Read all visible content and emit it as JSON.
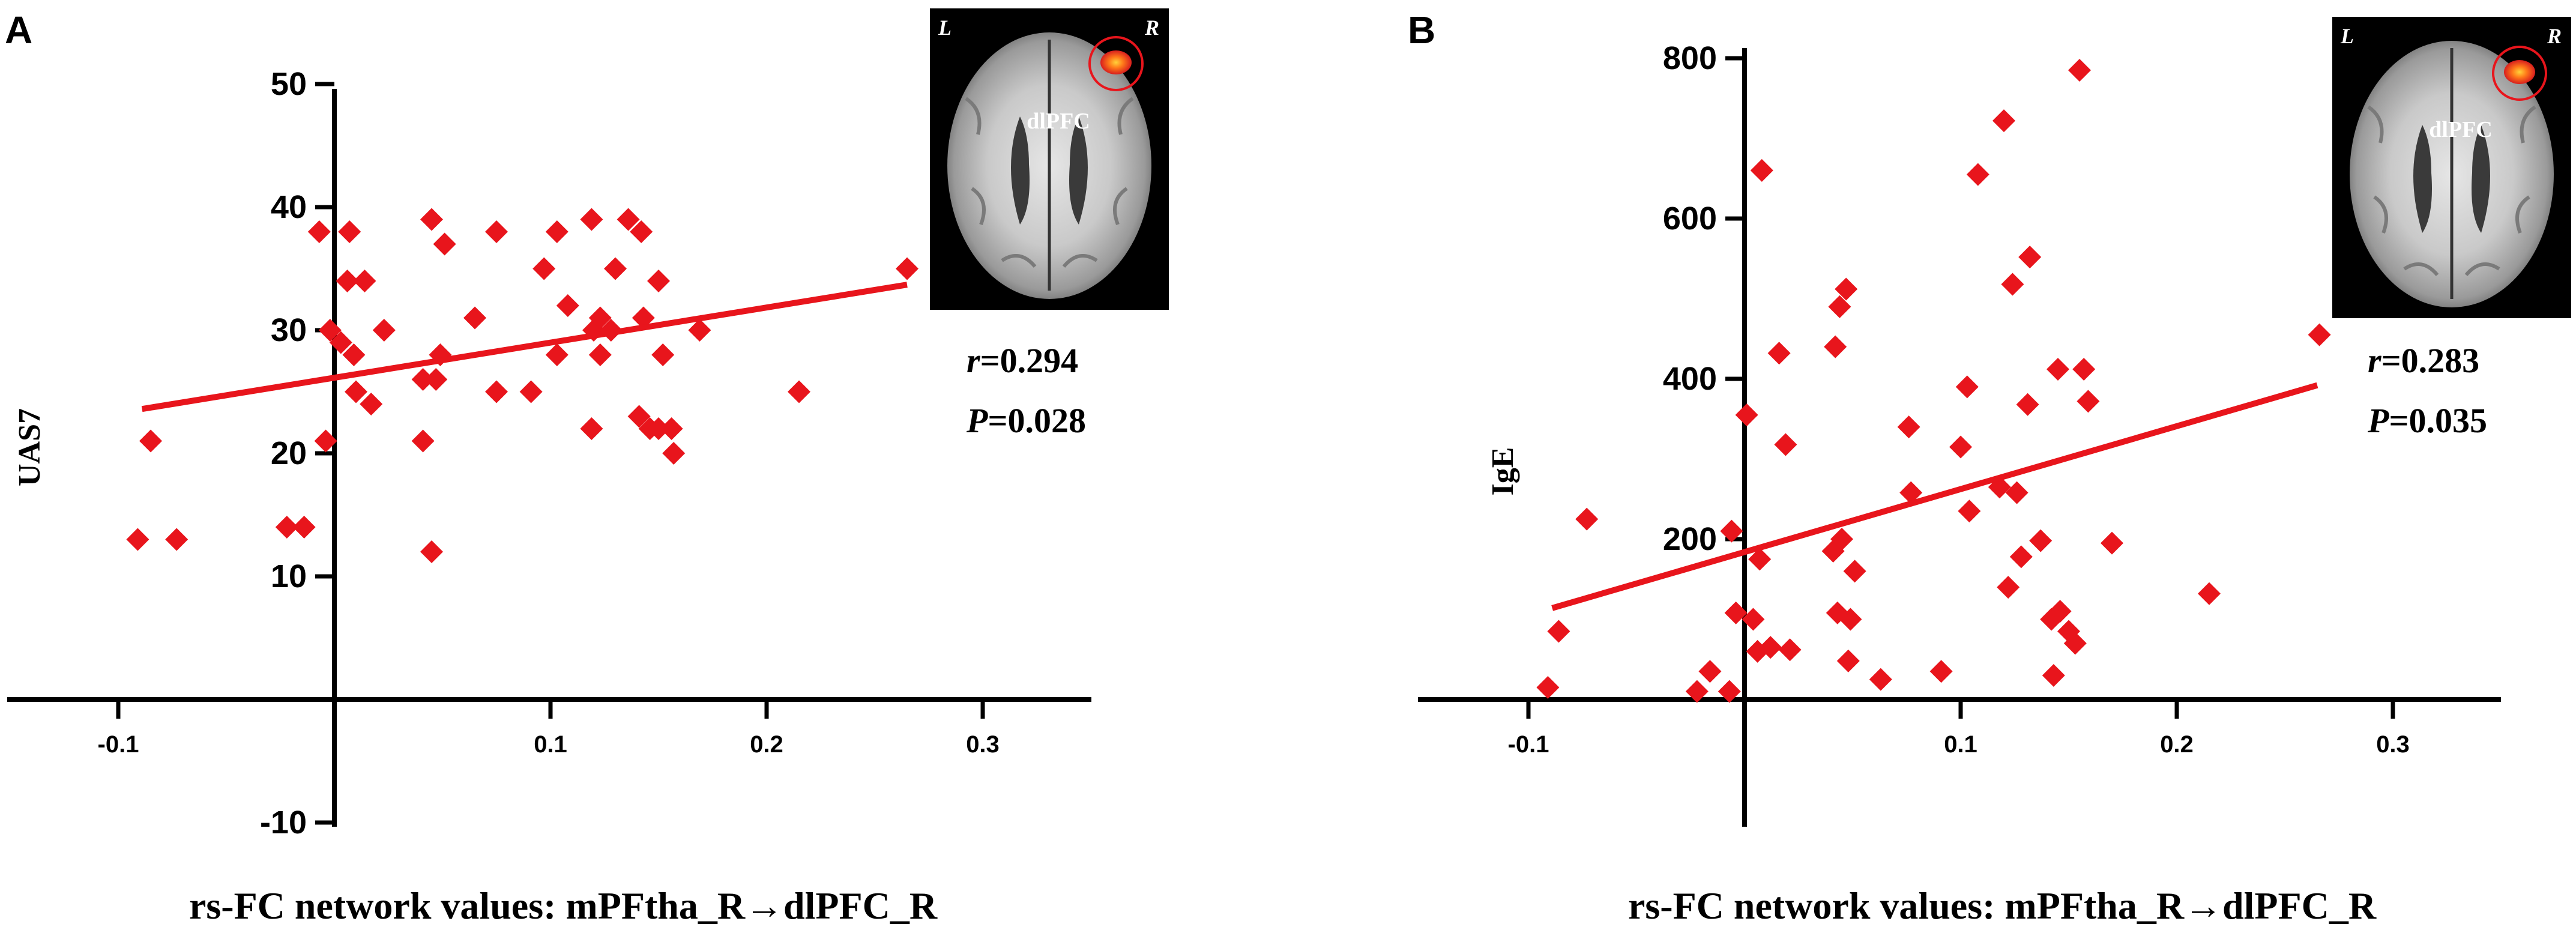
{
  "figure": {
    "accent_color": "#e8151c",
    "axis_color": "#000000",
    "background": "#ffffff"
  },
  "chart_data": [
    {
      "panel_label": "A",
      "type": "scatter",
      "xlabel": "rs-FC network values: mPFtha_R→dlPFC_R",
      "ylabel": "UAS7",
      "xlim": [
        -0.1,
        0.3
      ],
      "ylim": [
        -10,
        50
      ],
      "xticks": [
        -0.1,
        0.1,
        0.2,
        0.3
      ],
      "yticks": [
        -10,
        10,
        20,
        30,
        40,
        50
      ],
      "grid": false,
      "marker": "diamond",
      "marker_color": "#e8151c",
      "stats": {
        "r_symbol": "r",
        "r_value": "=0.294",
        "p_symbol": "P",
        "p_value": "=0.028"
      },
      "inset": {
        "type": "brain-axial-slice",
        "left_label": "L",
        "right_label": "R",
        "region_label": "dlPFC"
      },
      "fit": {
        "x": [
          -0.089,
          0.265
        ],
        "y": [
          23.6,
          33.7
        ]
      },
      "points": [
        [
          -0.091,
          13
        ],
        [
          -0.085,
          21
        ],
        [
          -0.073,
          13
        ],
        [
          -0.022,
          14
        ],
        [
          -0.014,
          14
        ],
        [
          -0.007,
          38
        ],
        [
          -0.004,
          21
        ],
        [
          -0.002,
          30
        ],
        [
          0.003,
          29
        ],
        [
          0.006,
          34
        ],
        [
          0.007,
          38
        ],
        [
          0.009,
          28
        ],
        [
          0.01,
          25
        ],
        [
          0.014,
          34
        ],
        [
          0.017,
          24
        ],
        [
          0.023,
          30
        ],
        [
          0.041,
          21
        ],
        [
          0.041,
          26
        ],
        [
          0.045,
          39
        ],
        [
          0.045,
          12
        ],
        [
          0.047,
          26
        ],
        [
          0.049,
          28
        ],
        [
          0.051,
          37
        ],
        [
          0.065,
          31
        ],
        [
          0.075,
          38
        ],
        [
          0.075,
          25
        ],
        [
          0.091,
          25
        ],
        [
          0.097,
          35
        ],
        [
          0.103,
          38
        ],
        [
          0.103,
          28
        ],
        [
          0.108,
          32
        ],
        [
          0.119,
          39
        ],
        [
          0.119,
          22
        ],
        [
          0.12,
          30
        ],
        [
          0.123,
          31
        ],
        [
          0.123,
          28
        ],
        [
          0.128,
          30
        ],
        [
          0.13,
          35
        ],
        [
          0.136,
          39
        ],
        [
          0.141,
          23
        ],
        [
          0.142,
          38
        ],
        [
          0.143,
          31
        ],
        [
          0.146,
          22
        ],
        [
          0.15,
          22
        ],
        [
          0.15,
          34
        ],
        [
          0.152,
          28
        ],
        [
          0.156,
          22
        ],
        [
          0.157,
          20
        ],
        [
          0.169,
          30
        ],
        [
          0.215,
          25
        ],
        [
          0.265,
          35
        ]
      ]
    },
    {
      "panel_label": "B",
      "type": "scatter",
      "xlabel": "rs-FC network values: mPFtha_R→dlPFC_R",
      "ylabel": "IgE",
      "xlim": [
        -0.1,
        0.3
      ],
      "ylim": [
        0,
        800
      ],
      "xticks": [
        -0.1,
        0.1,
        0.2,
        0.3
      ],
      "yticks": [
        200,
        400,
        600,
        800
      ],
      "grid": false,
      "marker": "diamond",
      "marker_color": "#e8151c",
      "stats": {
        "r_symbol": "r",
        "r_value": "=0.283",
        "p_symbol": "P",
        "p_value": "=0.035"
      },
      "inset": {
        "type": "brain-axial-slice",
        "left_label": "L",
        "right_label": "R",
        "region_label": "dlPFC"
      },
      "fit": {
        "x": [
          -0.089,
          0.265
        ],
        "y": [
          114,
          392
        ]
      },
      "points": [
        [
          -0.091,
          15
        ],
        [
          -0.086,
          85
        ],
        [
          -0.073,
          225
        ],
        [
          -0.022,
          10
        ],
        [
          -0.016,
          35
        ],
        [
          -0.007,
          10
        ],
        [
          -0.006,
          210
        ],
        [
          -0.004,
          108
        ],
        [
          0.001,
          355
        ],
        [
          0.004,
          100
        ],
        [
          0.006,
          60
        ],
        [
          0.007,
          175
        ],
        [
          0.008,
          660
        ],
        [
          0.012,
          65
        ],
        [
          0.016,
          432
        ],
        [
          0.019,
          318
        ],
        [
          0.021,
          62
        ],
        [
          0.041,
          185
        ],
        [
          0.042,
          440
        ],
        [
          0.043,
          108
        ],
        [
          0.044,
          490
        ],
        [
          0.045,
          200
        ],
        [
          0.047,
          512
        ],
        [
          0.048,
          48
        ],
        [
          0.049,
          100
        ],
        [
          0.051,
          160
        ],
        [
          0.063,
          25
        ],
        [
          0.076,
          340
        ],
        [
          0.077,
          258
        ],
        [
          0.091,
          35
        ],
        [
          0.1,
          315
        ],
        [
          0.103,
          390
        ],
        [
          0.104,
          235
        ],
        [
          0.108,
          655
        ],
        [
          0.118,
          265
        ],
        [
          0.12,
          722
        ],
        [
          0.122,
          140
        ],
        [
          0.124,
          518
        ],
        [
          0.126,
          258
        ],
        [
          0.128,
          178
        ],
        [
          0.131,
          368
        ],
        [
          0.132,
          552
        ],
        [
          0.137,
          198
        ],
        [
          0.142,
          100
        ],
        [
          0.143,
          30
        ],
        [
          0.145,
          412
        ],
        [
          0.146,
          110
        ],
        [
          0.15,
          85
        ],
        [
          0.153,
          70
        ],
        [
          0.155,
          785
        ],
        [
          0.157,
          412
        ],
        [
          0.159,
          372
        ],
        [
          0.17,
          195
        ],
        [
          0.215,
          132
        ],
        [
          0.266,
          455
        ]
      ]
    }
  ]
}
